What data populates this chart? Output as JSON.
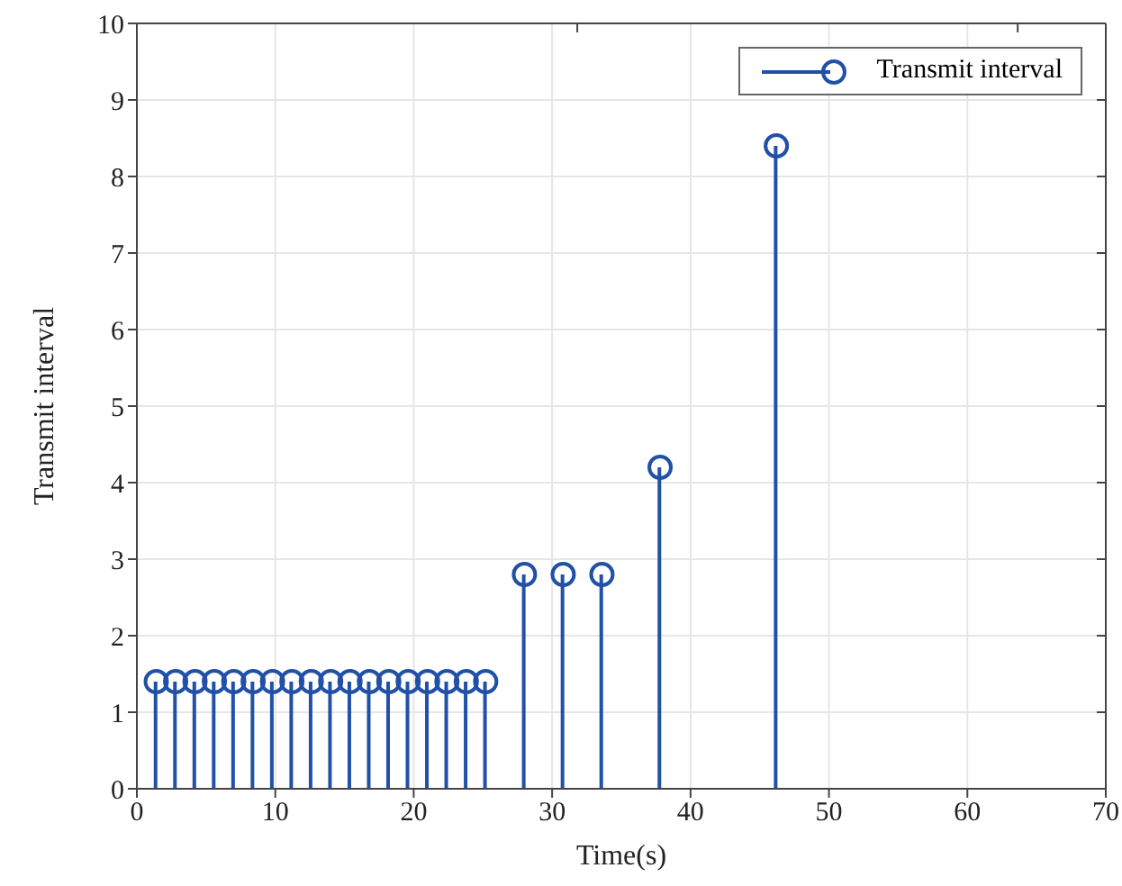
{
  "chart_data": {
    "type": "lollipop",
    "xlabel": "Time(s)",
    "ylabel": "Transmit interval",
    "x": [
      1.4,
      2.8,
      4.2,
      5.6,
      7,
      8.4,
      9.8,
      11.2,
      12.6,
      14,
      15.4,
      16.8,
      18.2,
      19.6,
      21,
      22.4,
      23.8,
      25.2,
      28,
      30.8,
      33.6,
      37.8,
      46.2
    ],
    "series": [
      {
        "name": "Transmit interval",
        "color": "#2150a8",
        "values": [
          1.4,
          1.4,
          1.4,
          1.4,
          1.4,
          1.4,
          1.4,
          1.4,
          1.4,
          1.4,
          1.4,
          1.4,
          1.4,
          1.4,
          1.4,
          1.4,
          1.4,
          1.4,
          2.8,
          2.8,
          2.8,
          4.2,
          8.4
        ]
      }
    ],
    "xlim": [
      0,
      70
    ],
    "ylim": [
      0,
      10
    ],
    "xticks": [
      0,
      10,
      20,
      30,
      40,
      50,
      60,
      70
    ],
    "yticks": [
      0,
      1,
      2,
      3,
      4,
      5,
      6,
      7,
      8,
      9,
      10
    ],
    "grid": true,
    "legend": "top right",
    "marker": "circle"
  }
}
